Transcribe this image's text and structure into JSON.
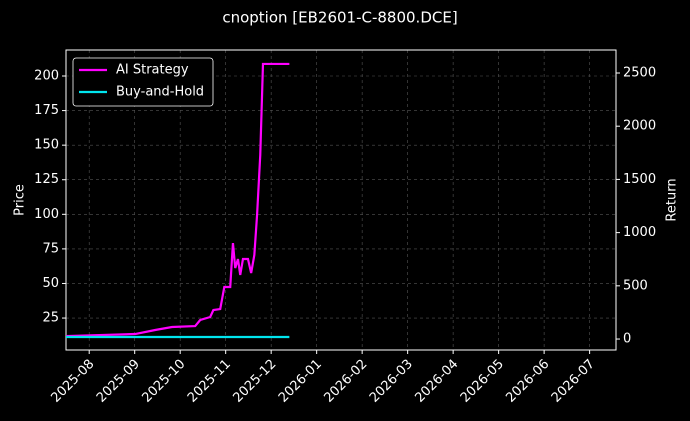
{
  "chart_data": {
    "type": "line",
    "title": "cnoption [EB2601-C-8800.DCE]",
    "ylabel": "Price",
    "y2label": "Return",
    "xlim": [
      -0.51,
      11.58
    ],
    "xticks": [
      {
        "value": 0,
        "label": "2025-08"
      },
      {
        "value": 1,
        "label": "2025-09"
      },
      {
        "value": 2,
        "label": "2025-10"
      },
      {
        "value": 3,
        "label": "2025-11"
      },
      {
        "value": 4,
        "label": "2025-12"
      },
      {
        "value": 5,
        "label": "2026-01"
      },
      {
        "value": 6,
        "label": "2026-02"
      },
      {
        "value": 7,
        "label": "2026-03"
      },
      {
        "value": 8,
        "label": "2026-04"
      },
      {
        "value": 9,
        "label": "2026-05"
      },
      {
        "value": 10,
        "label": "2026-06"
      },
      {
        "value": 11,
        "label": "2026-07"
      }
    ],
    "ylim": [
      1.9,
      218.8
    ],
    "yticks": [
      25,
      50,
      75,
      100,
      125,
      150,
      175,
      200
    ],
    "y2lim": [
      -103,
      2716
    ],
    "y2ticks": [
      0,
      500,
      1000,
      1500,
      2000,
      2500
    ],
    "grid": true,
    "legend": "upper left",
    "series": [
      {
        "name": "AI Strategy",
        "color": "#ff00ff",
        "axis": "y2",
        "x": [
          -0.51,
          1.01,
          1.45,
          1.82,
          2.33,
          2.44,
          2.66,
          2.73,
          2.88,
          2.97,
          3.1,
          3.16,
          3.21,
          3.27,
          3.32,
          3.38,
          3.49,
          3.56,
          3.63,
          3.69,
          3.76,
          3.82,
          4.4
        ],
        "values": [
          28,
          47,
          85,
          113,
          122,
          179,
          207,
          273,
          282,
          489,
          489,
          902,
          667,
          752,
          602,
          752,
          752,
          620,
          790,
          1165,
          1729,
          2585,
          2585
        ]
      },
      {
        "name": "Buy-and-Hold",
        "color": "#00e5ee",
        "axis": "y2",
        "x": [
          -0.51,
          4.4
        ],
        "values": [
          19,
          19
        ]
      }
    ]
  }
}
